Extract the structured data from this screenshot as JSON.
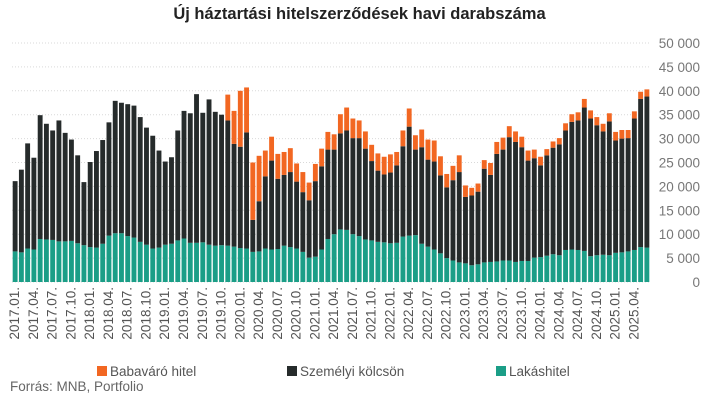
{
  "chart_data": {
    "type": "bar",
    "stacked": true,
    "title": "Új háztartási hitelszerződések havi darabszáma",
    "source": "Forrás: MNB, Portfolio",
    "ylim": [
      0,
      50000
    ],
    "yticks": [
      "0",
      "5 000",
      "10 000",
      "15 000",
      "20 000",
      "25 000",
      "30 000",
      "35 000",
      "40 000",
      "45 000",
      "50 000"
    ],
    "y_axis_position": "right",
    "grid": true,
    "legend_position": "bottom",
    "colors": {
      "Babaváró hitel": "#f26722",
      "Személyi kölcsön": "#262b2b",
      "Lakáshitel": "#1b9e87"
    },
    "x_tick_labels": [
      "2017.01.",
      "2017.04.",
      "2017.07.",
      "2017.10.",
      "2018.01.",
      "2018.04.",
      "2018.07.",
      "2018.10.",
      "2019.01.",
      "2019.04.",
      "2019.07.",
      "2019.10.",
      "2020.01.",
      "2020.04.",
      "2020.07.",
      "2020.10.",
      "2021.01.",
      "2021.04.",
      "2021.07.",
      "2021.10.",
      "2022.01.",
      "2022.04.",
      "2022.07.",
      "2022.10.",
      "2023.01.",
      "2023.04.",
      "2023.07.",
      "2023.10.",
      "2024.01.",
      "2024.04.",
      "2024.07.",
      "2024.10.",
      "2025.01.",
      "2025.04."
    ],
    "series": [
      {
        "name": "Lakáshitel",
        "values": [
          6400,
          6200,
          7000,
          6800,
          9000,
          8900,
          8800,
          8500,
          8500,
          8600,
          8100,
          7700,
          7300,
          7200,
          8000,
          9700,
          10200,
          10200,
          9600,
          9300,
          8400,
          7800,
          7000,
          7200,
          7800,
          8000,
          8700,
          9100,
          8200,
          8200,
          8300,
          7800,
          7600,
          7700,
          7600,
          7400,
          7100,
          7000,
          6300,
          6400,
          7000,
          6800,
          6900,
          7600,
          7300,
          7000,
          6300,
          5100,
          5300,
          6800,
          9000,
          10000,
          11000,
          10900,
          10000,
          9600,
          8900,
          8700,
          8400,
          8300,
          8100,
          8200,
          9500,
          9700,
          9800,
          8000,
          7400,
          6800,
          6000,
          5000,
          4500,
          4100,
          3900,
          3500,
          3700,
          4100,
          4200,
          4300,
          4500,
          4500,
          4200,
          4400,
          4400,
          5100,
          5200,
          5500,
          5800,
          5600,
          6700,
          6800,
          6700,
          6500,
          5400,
          5600,
          5700,
          5600,
          6100,
          6200,
          6400,
          6700,
          7300,
          7200
        ],
        "color": "#1b9e87"
      },
      {
        "name": "Személyi kölcsön",
        "values": [
          14700,
          17300,
          22000,
          19200,
          25900,
          24200,
          22900,
          25300,
          22700,
          21200,
          18400,
          13200,
          17800,
          20200,
          21700,
          23700,
          27700,
          27300,
          27600,
          27600,
          26100,
          24500,
          23600,
          20300,
          17400,
          18100,
          23000,
          26700,
          27100,
          31100,
          27100,
          30400,
          28000,
          27300,
          26200,
          21500,
          21200,
          24300,
          6700,
          10500,
          15100,
          18600,
          14700,
          14800,
          15700,
          14000,
          12500,
          12000,
          15800,
          17400,
          18700,
          17700,
          20100,
          20800,
          20100,
          20500,
          19000,
          16600,
          14900,
          14200,
          14800,
          16200,
          18900,
          22800,
          17900,
          20200,
          18200,
          18400,
          16300,
          14800,
          16800,
          18900,
          13900,
          14600,
          15200,
          19600,
          18200,
          22500,
          23200,
          25800,
          25100,
          23800,
          21000,
          20800,
          19200,
          21000,
          22300,
          23200,
          25000,
          26700,
          27100,
          30000,
          28800,
          27200,
          25800,
          28000,
          23500,
          23800,
          23700,
          27500,
          31000,
          31600
        ],
        "color": "#262b2b"
      },
      {
        "name": "Babaváró hitel",
        "values": [
          0,
          0,
          0,
          0,
          0,
          0,
          0,
          0,
          0,
          0,
          0,
          0,
          0,
          0,
          0,
          0,
          0,
          0,
          0,
          0,
          0,
          0,
          0,
          0,
          0,
          0,
          0,
          0,
          0,
          0,
          0,
          0,
          0,
          0,
          5400,
          6900,
          11700,
          9400,
          12000,
          9500,
          5400,
          5000,
          5200,
          4800,
          5000,
          3800,
          4200,
          3700,
          3600,
          3700,
          3700,
          3200,
          4000,
          4800,
          4100,
          3700,
          3600,
          3400,
          3600,
          3700,
          3800,
          2800,
          3300,
          3800,
          3000,
          3700,
          4200,
          4400,
          4000,
          2800,
          3000,
          3500,
          2400,
          1600,
          1700,
          1800,
          2500,
          2500,
          2500,
          2300,
          2200,
          2200,
          2100,
          1800,
          1800,
          1300,
          1300,
          1300,
          1500,
          1600,
          1700,
          1800,
          1700,
          1700,
          1600,
          1700,
          1800,
          1800,
          1700,
          1500,
          1500,
          1500
        ],
        "color": "#f26722"
      }
    ]
  }
}
